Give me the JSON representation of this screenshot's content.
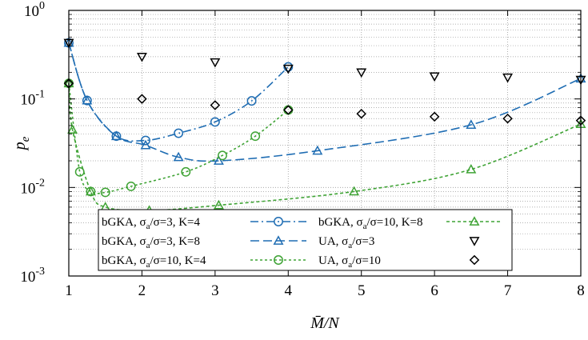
{
  "chart_data": {
    "type": "line",
    "title": "",
    "xlabel": "M̄/N",
    "ylabel": "p",
    "ylabel_sub": "e",
    "x_scale": "linear",
    "y_scale": "log",
    "xlim": [
      1,
      8
    ],
    "ylim": [
      0.001,
      1
    ],
    "grid": "major and minor (dotted)",
    "legend_position": "bottom, inside plot",
    "x_ticks": [
      1,
      2,
      3,
      4,
      5,
      6,
      7,
      8
    ],
    "y_ticks": [
      {
        "value": 0.001,
        "base": "10",
        "exp": "-3"
      },
      {
        "value": 0.01,
        "base": "10",
        "exp": "-2"
      },
      {
        "value": 0.1,
        "base": "10",
        "exp": "-1"
      },
      {
        "value": 1,
        "base": "10",
        "exp": "0"
      }
    ],
    "series": [
      {
        "name": "bGKA, σa/σ=3, K=4",
        "label": {
          "pre": "bGKA, σ",
          "sub": "a",
          "post": "/σ=3, K=4"
        },
        "color": "#1f6db3",
        "marker": "circle",
        "dash": "10 4 2 4",
        "x": [
          1.0,
          1.25,
          1.65,
          2.05,
          2.5,
          3.0,
          3.5,
          4.0
        ],
        "y": [
          0.43,
          0.096,
          0.038,
          0.034,
          0.041,
          0.055,
          0.095,
          0.23
        ]
      },
      {
        "name": "bGKA, σa/σ=3, K=8",
        "label": {
          "pre": "bGKA, σ",
          "sub": "a",
          "post": "/σ=3, K=8"
        },
        "color": "#1f6db3",
        "marker": "triangle-up",
        "dash": "11 5",
        "x": [
          1.0,
          1.25,
          1.65,
          2.05,
          2.5,
          3.05,
          4.4,
          6.5,
          8.0
        ],
        "y": [
          0.43,
          0.096,
          0.038,
          0.03,
          0.022,
          0.02,
          0.026,
          0.051,
          0.17
        ]
      },
      {
        "name": "bGKA, σa/σ=10, K=4",
        "label": {
          "pre": "bGKA, σ",
          "sub": "a",
          "post": "/σ=10, K=4"
        },
        "color": "#3fa335",
        "marker": "circle",
        "dash": "3 3",
        "x": [
          1.0,
          1.15,
          1.3,
          1.5,
          1.85,
          2.6,
          3.1,
          3.55,
          4.0
        ],
        "y": [
          0.15,
          0.015,
          0.009,
          0.0088,
          0.0103,
          0.015,
          0.023,
          0.038,
          0.075
        ]
      },
      {
        "name": "bGKA, σa/σ=10, K=8",
        "label": {
          "pre": "bGKA, σ",
          "sub": "a",
          "post": "/σ=10, K=8"
        },
        "color": "#3fa335",
        "marker": "triangle-up",
        "dash": "4 3",
        "x": [
          1.0,
          1.05,
          1.3,
          1.5,
          2.1,
          3.05,
          4.9,
          6.5,
          8.0
        ],
        "y": [
          0.15,
          0.045,
          0.009,
          0.006,
          0.0055,
          0.0063,
          0.009,
          0.016,
          0.052
        ]
      },
      {
        "name": "UA, σa/σ=3",
        "label": {
          "pre": "UA, σ",
          "sub": "a",
          "post": "/σ=3"
        },
        "color": "#000000",
        "marker": "triangle-down",
        "dash": "none",
        "x": [
          1,
          2,
          3,
          4,
          5,
          6,
          7,
          8
        ],
        "y": [
          0.43,
          0.3,
          0.26,
          0.22,
          0.2,
          0.18,
          0.175,
          0.165
        ]
      },
      {
        "name": "UA, σa/σ=10",
        "label": {
          "pre": "UA, σ",
          "sub": "a",
          "post": "/σ=10"
        },
        "color": "#000000",
        "marker": "diamond",
        "dash": "none",
        "x": [
          1,
          2,
          3,
          4,
          5,
          6,
          7,
          8
        ],
        "y": [
          0.15,
          0.1,
          0.085,
          0.075,
          0.068,
          0.063,
          0.06,
          0.057
        ]
      }
    ]
  }
}
